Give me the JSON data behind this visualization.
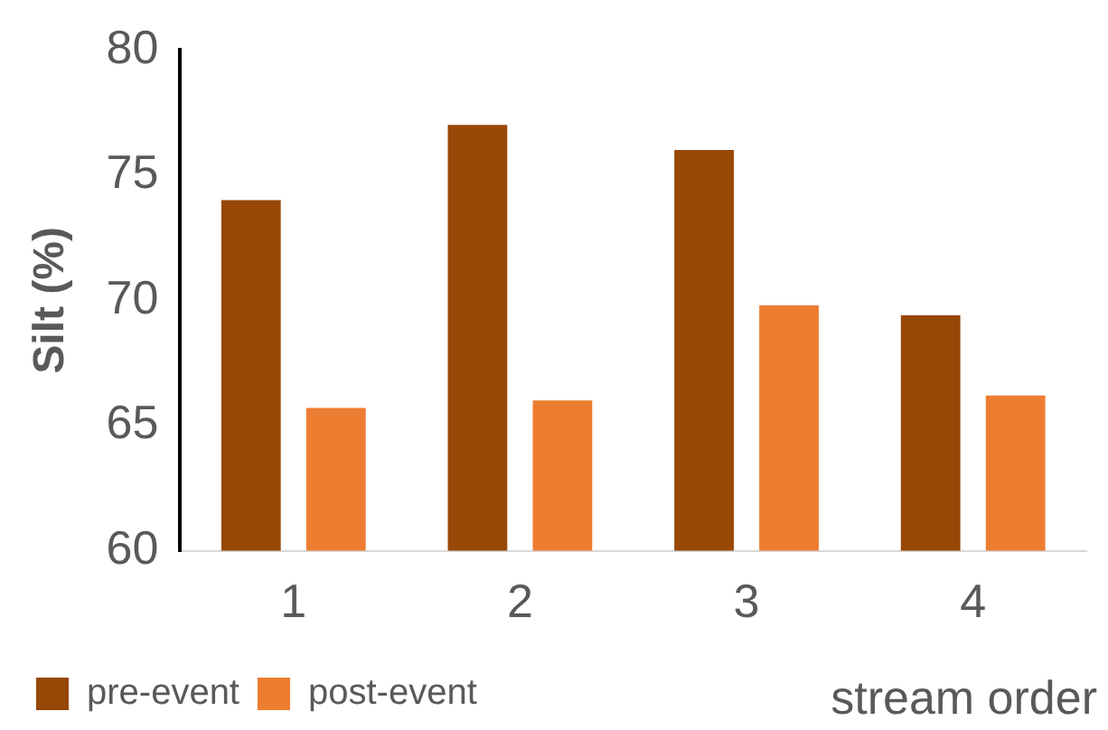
{
  "chart_data": {
    "type": "bar",
    "ylabel": "Silt (%)",
    "xlabel": "stream order",
    "categories": [
      "1",
      "2",
      "3",
      "4"
    ],
    "series": [
      {
        "name": "pre-event",
        "color": "#974706",
        "values": [
          74,
          77,
          76,
          69.4
        ]
      },
      {
        "name": "post-event",
        "color": "#ed7d31",
        "values": [
          65.7,
          66,
          69.8,
          66.2
        ]
      }
    ],
    "ylim": [
      60,
      80
    ],
    "yticks": [
      60,
      65,
      70,
      75,
      80
    ],
    "grid": false,
    "legend": "bottom left"
  }
}
